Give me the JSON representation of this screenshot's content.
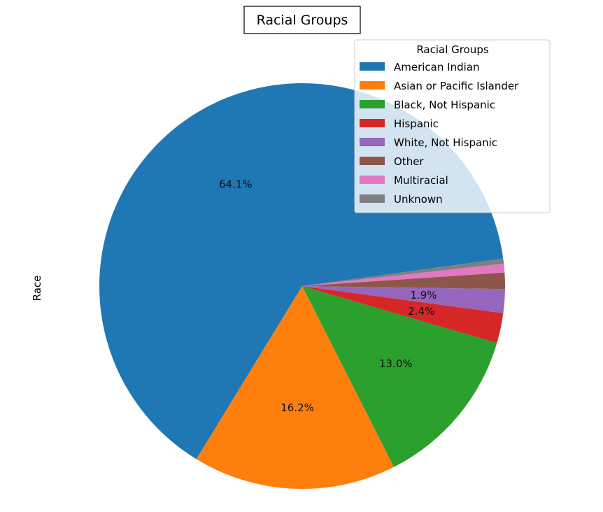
{
  "chart_data": {
    "type": "pie",
    "title": "Racial Groups",
    "ylabel": "Race",
    "legend": {
      "title": "Racial Groups",
      "placement": "top-right"
    },
    "slices": [
      {
        "label": "American Indian",
        "value": 64.1,
        "pct_label": "64.1%",
        "color": "#1f77b4"
      },
      {
        "label": "Asian or Pacific Islander",
        "value": 16.2,
        "pct_label": "16.2%",
        "color": "#ff7f0e"
      },
      {
        "label": "Black, Not Hispanic",
        "value": 13.0,
        "pct_label": "13.0%",
        "color": "#2ca02c"
      },
      {
        "label": "Hispanic",
        "value": 2.4,
        "pct_label": "2.4%",
        "color": "#d62728"
      },
      {
        "label": "White, Not Hispanic",
        "value": 1.9,
        "pct_label": "1.9%",
        "color": "#9467bd"
      },
      {
        "label": "Other",
        "value": 1.3,
        "pct_label": "",
        "color": "#8c564b"
      },
      {
        "label": "Multiracial",
        "value": 0.7,
        "pct_label": "",
        "color": "#e377c2"
      },
      {
        "label": "Unknown",
        "value": 0.4,
        "pct_label": "",
        "color": "#7f7f7f"
      }
    ]
  }
}
